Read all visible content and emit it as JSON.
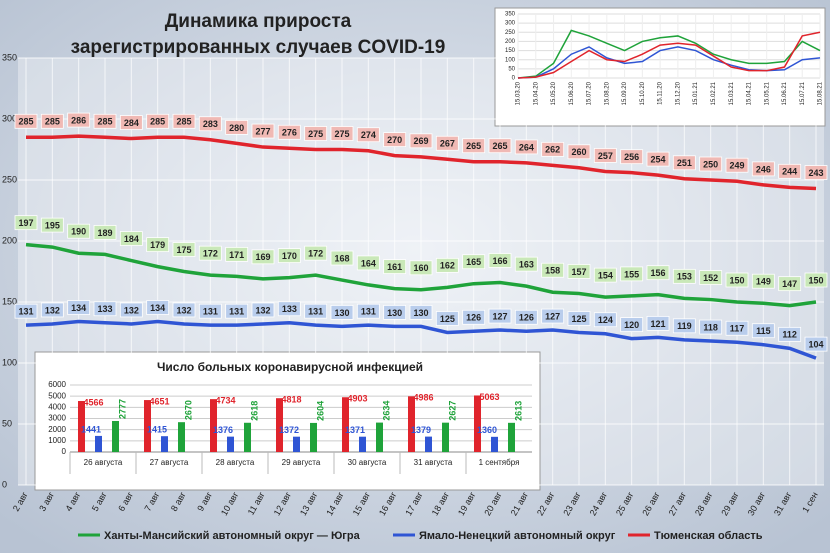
{
  "chart_data": [
    {
      "type": "line",
      "title": [
        "Динамика прироста",
        "зарегистрированных случаев COVID-19"
      ],
      "categories": [
        "2 авг",
        "3 авг",
        "4 авг",
        "5 авг",
        "6 авг",
        "7 авг",
        "8 авг",
        "9 авг",
        "10 авг",
        "11 авг",
        "12 авг",
        "13 авг",
        "14 авг",
        "15 авг",
        "16 авг",
        "17 авг",
        "18 авг",
        "19 авг",
        "20 авг",
        "21 авг",
        "22 авг",
        "23 авг",
        "24 авг",
        "25 авг",
        "26 авг",
        "27 авг",
        "28 авг",
        "29 авг",
        "30 авг",
        "31 авг",
        "1 сен"
      ],
      "series": [
        {
          "name": "Ханты-Мансийский автономный округ — Югра",
          "color": "#1fa33a",
          "label_color": "#c9e8b8",
          "values": [
            197,
            195,
            190,
            189,
            184,
            179,
            175,
            172,
            171,
            169,
            170,
            172,
            168,
            164,
            161,
            160,
            162,
            165,
            166,
            163,
            158,
            157,
            154,
            155,
            156,
            153,
            152,
            150,
            149,
            147,
            150
          ]
        },
        {
          "name": "Ямало-Ненецкий автономный округ",
          "color": "#2f55d4",
          "label_color": "#b9cdec",
          "values": [
            131,
            132,
            134,
            133,
            132,
            134,
            132,
            131,
            131,
            132,
            133,
            131,
            130,
            131,
            130,
            130,
            125,
            126,
            127,
            126,
            127,
            125,
            124,
            120,
            121,
            119,
            118,
            117,
            115,
            112,
            104
          ]
        },
        {
          "name": "Тюменская область",
          "color": "#e0242c",
          "label_color": "#f0b9b4",
          "values": [
            285,
            285,
            286,
            285,
            284,
            285,
            285,
            283,
            280,
            277,
            276,
            275,
            275,
            274,
            270,
            269,
            267,
            265,
            265,
            264,
            262,
            260,
            257,
            256,
            254,
            251,
            250,
            249,
            246,
            244,
            243
          ]
        }
      ],
      "ylim": [
        0,
        350
      ],
      "yticks": [
        0,
        50,
        100,
        150,
        200,
        250,
        300,
        350
      ],
      "grid": true
    },
    {
      "type": "bar",
      "title": "Число больных коронавирусной  инфекцией",
      "categories": [
        "26 августа",
        "27 августа",
        "28 августа",
        "29 августа",
        "30 августа",
        "31 августа",
        "1 сентября"
      ],
      "series": [
        {
          "color": "#e0242c",
          "values": [
            4566,
            4651,
            4734,
            4818,
            4903,
            4986,
            5063
          ]
        },
        {
          "color": "#2f55d4",
          "values": [
            1441,
            1415,
            1376,
            1372,
            1371,
            1379,
            1360
          ]
        },
        {
          "color": "#1fa33a",
          "values": [
            2777,
            2670,
            2618,
            2604,
            2634,
            2627,
            2613
          ]
        }
      ],
      "ylim": [
        0,
        6000
      ],
      "yticks": [
        0,
        1000,
        2000,
        3000,
        4000,
        5000,
        6000
      ],
      "grid": true
    },
    {
      "type": "line",
      "categories": [
        "15.03.20",
        "15.04.20",
        "15.05.20",
        "15.06.20",
        "15.07.20",
        "15.08.20",
        "15.09.20",
        "15.10.20",
        "15.11.20",
        "15.12.20",
        "15.01.21",
        "15.02.21",
        "15.03.21",
        "15.04.21",
        "15.05.21",
        "15.06.21",
        "15.07.21",
        "15.08.21"
      ],
      "series": [
        {
          "color": "#1fa33a",
          "values": [
            0,
            10,
            80,
            260,
            230,
            190,
            150,
            200,
            220,
            230,
            190,
            130,
            100,
            80,
            80,
            90,
            200,
            150
          ]
        },
        {
          "color": "#2f55d4",
          "values": [
            0,
            5,
            50,
            130,
            170,
            110,
            80,
            90,
            150,
            170,
            150,
            100,
            70,
            45,
            40,
            45,
            100,
            110
          ]
        },
        {
          "color": "#e0242c",
          "values": [
            0,
            5,
            30,
            90,
            150,
            100,
            90,
            130,
            180,
            190,
            180,
            120,
            60,
            40,
            40,
            60,
            230,
            250
          ]
        }
      ],
      "ylim": [
        0,
        350
      ],
      "yticks": [
        0,
        50,
        100,
        150,
        200,
        250,
        300,
        350
      ],
      "grid": true
    }
  ]
}
